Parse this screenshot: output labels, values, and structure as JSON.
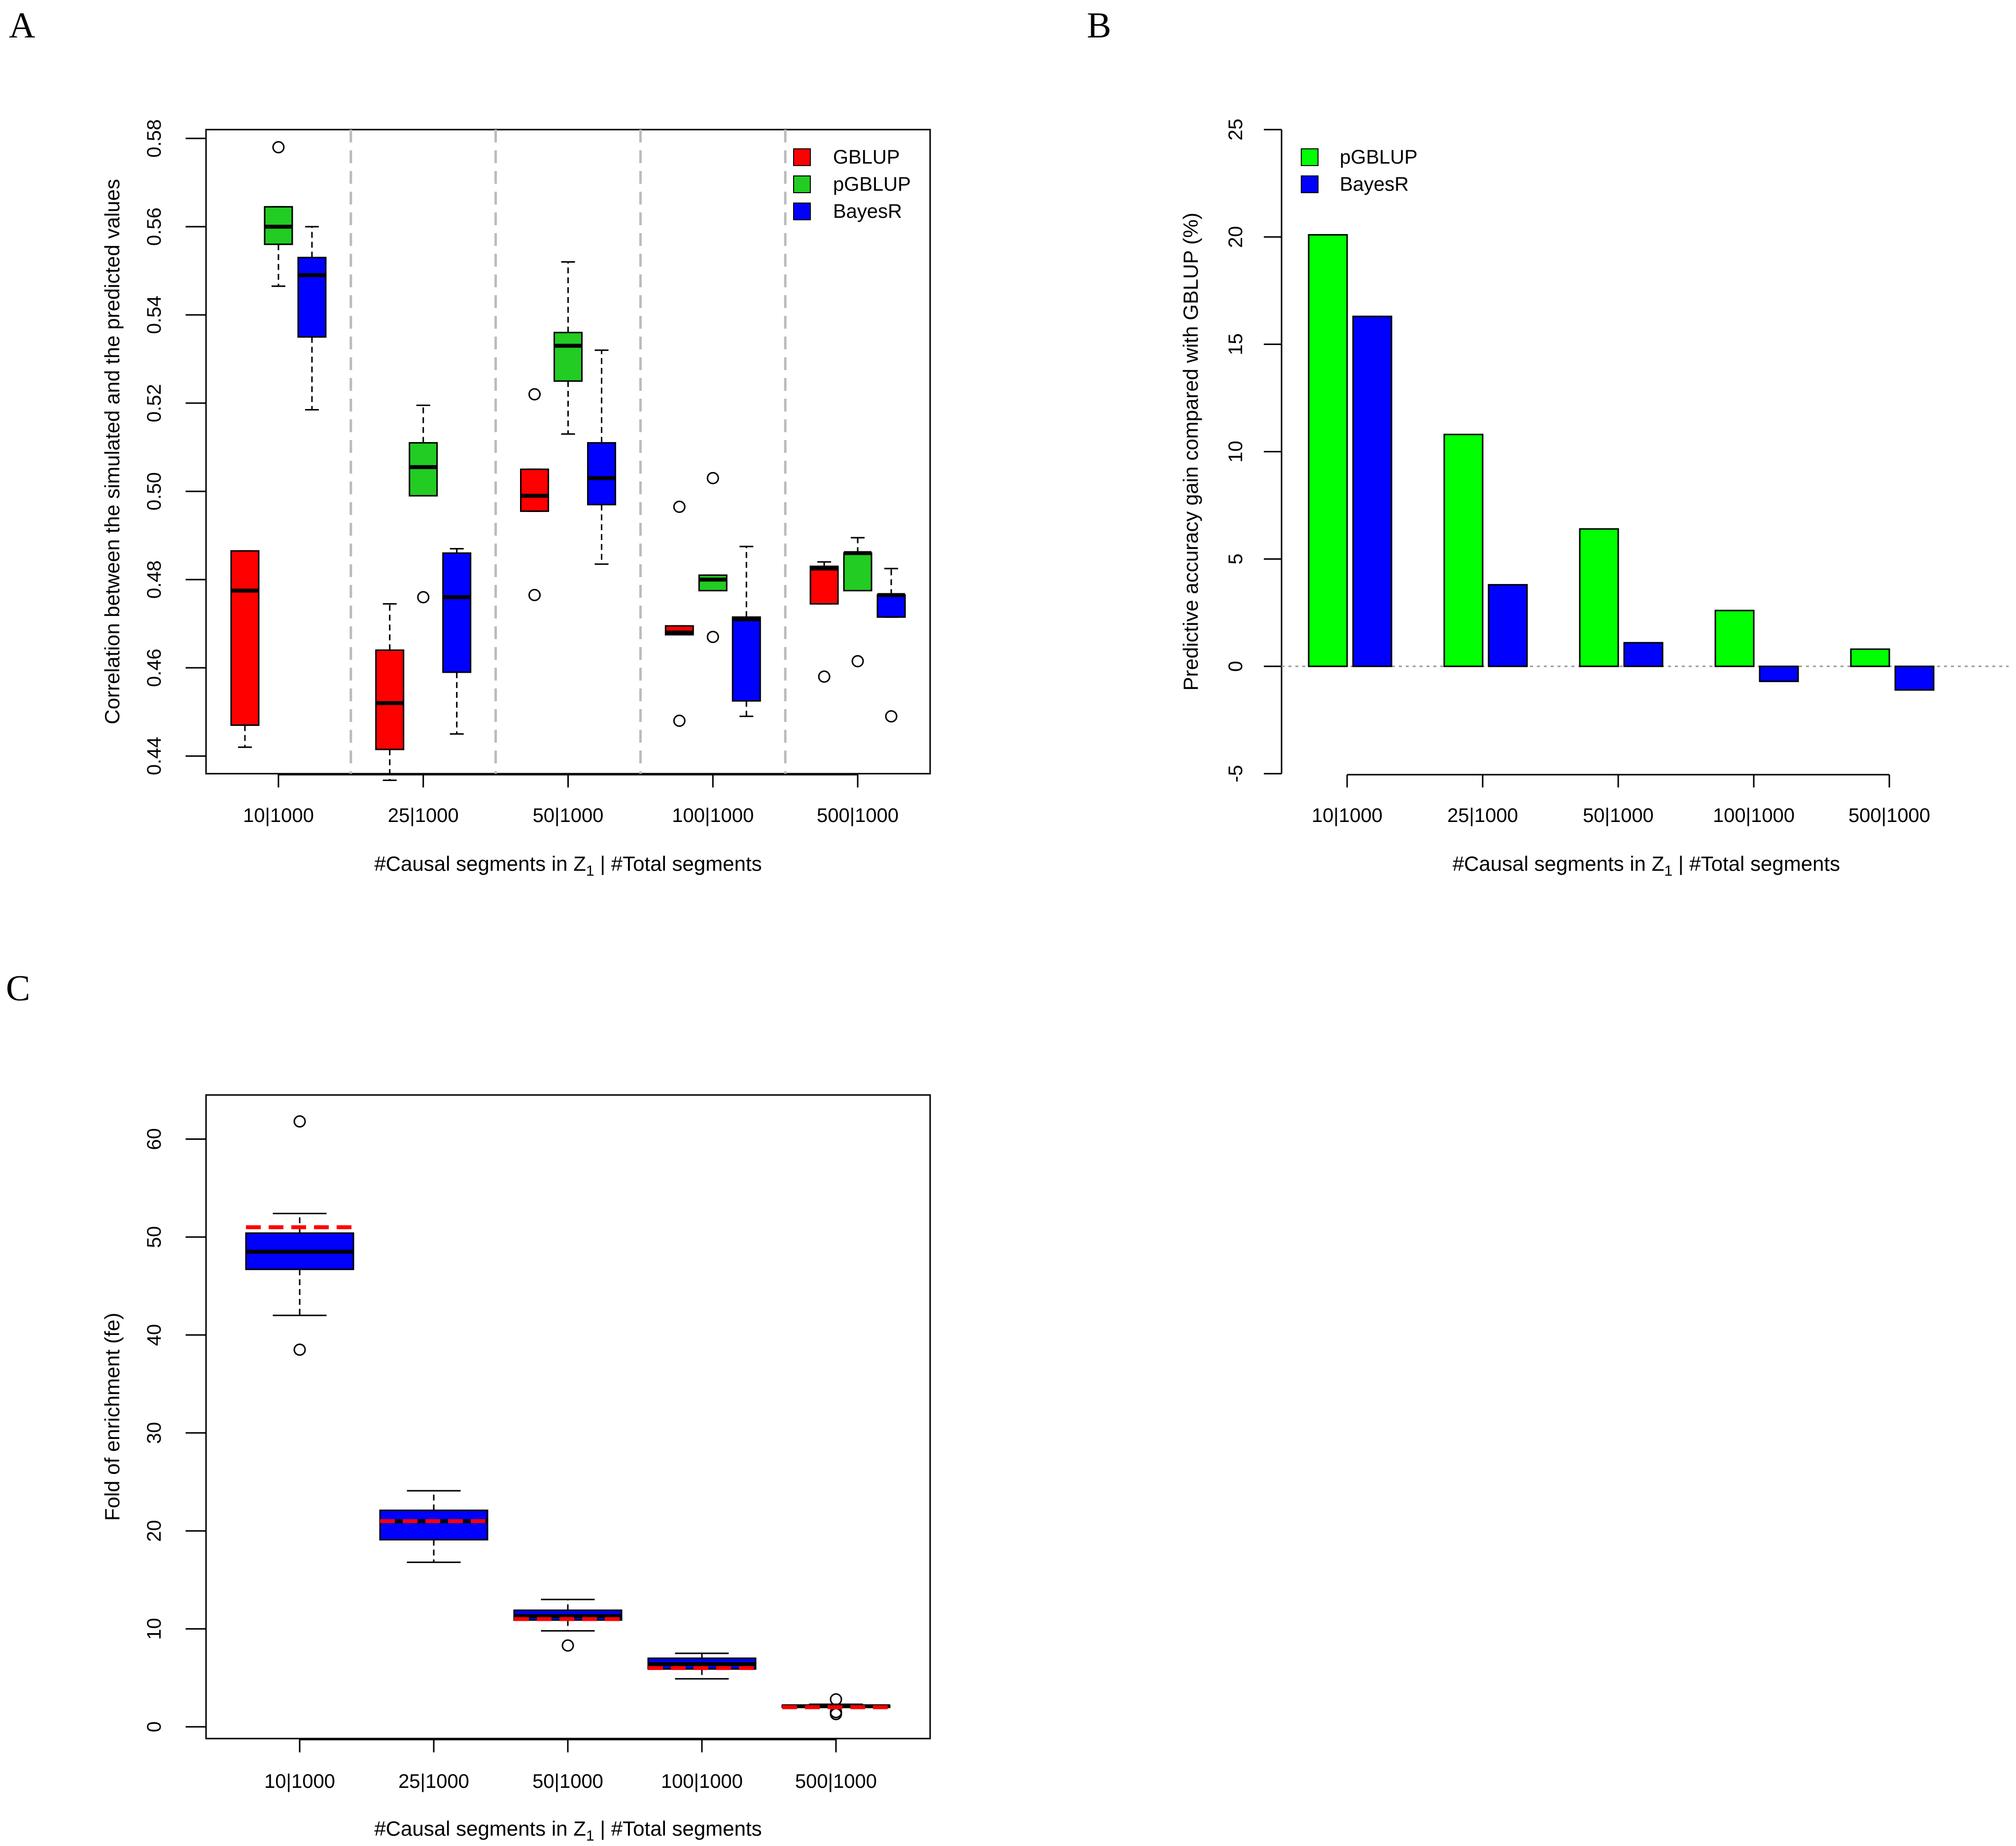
{
  "chart_data": [
    {
      "panel": "A",
      "type": "boxplot",
      "xlabel": "#Causal segments in Z1 | #Total segments",
      "xlabel_parts": {
        "pre": "#Causal segments in Z",
        "sub": "1",
        "post": " | #Total segments"
      },
      "ylabel": "Correlation between the simulated and the predicted values",
      "ylim": [
        0.436,
        0.582
      ],
      "yticks": [
        0.44,
        0.46,
        0.48,
        0.5,
        0.52,
        0.54,
        0.56,
        0.58
      ],
      "ytick_labels": [
        "0.44",
        "0.46",
        "0.48",
        "0.50",
        "0.52",
        "0.54",
        "0.56",
        "0.58"
      ],
      "categories": [
        "10|1000",
        "25|1000",
        "50|1000",
        "100|1000",
        "500|1000"
      ],
      "legend_position": "top-right",
      "series": [
        {
          "name": "GBLUP",
          "color": "#ff0000",
          "boxes": [
            {
              "min": 0.442,
              "q1": 0.447,
              "median": 0.4775,
              "q3": 0.4865,
              "max": 0.4865,
              "outliers": []
            },
            {
              "min": 0.4345,
              "q1": 0.4415,
              "median": 0.452,
              "q3": 0.464,
              "max": 0.4745,
              "outliers": []
            },
            {
              "min": 0.4955,
              "q1": 0.4955,
              "median": 0.499,
              "q3": 0.505,
              "max": 0.505,
              "outliers": [
                0.522,
                0.4765
              ]
            },
            {
              "min": 0.4675,
              "q1": 0.4675,
              "median": 0.468,
              "q3": 0.4695,
              "max": 0.4695,
              "outliers": [
                0.4965,
                0.448
              ]
            },
            {
              "min": 0.4745,
              "q1": 0.4745,
              "median": 0.4825,
              "q3": 0.483,
              "max": 0.484,
              "outliers": [
                0.458
              ]
            }
          ]
        },
        {
          "name": "pGBLUP",
          "color": "#22cc22",
          "boxes": [
            {
              "min": 0.5465,
              "q1": 0.556,
              "median": 0.56,
              "q3": 0.5645,
              "max": 0.5645,
              "outliers": [
                0.578
              ]
            },
            {
              "min": 0.499,
              "q1": 0.499,
              "median": 0.5055,
              "q3": 0.511,
              "max": 0.5195,
              "outliers": [
                0.476
              ]
            },
            {
              "min": 0.513,
              "q1": 0.525,
              "median": 0.533,
              "q3": 0.536,
              "max": 0.552,
              "outliers": []
            },
            {
              "min": 0.4775,
              "q1": 0.4775,
              "median": 0.48,
              "q3": 0.481,
              "max": 0.481,
              "outliers": [
                0.503,
                0.467
              ]
            },
            {
              "min": 0.4775,
              "q1": 0.4775,
              "median": 0.486,
              "q3": 0.486,
              "max": 0.4895,
              "outliers": [
                0.4615
              ]
            }
          ]
        },
        {
          "name": "BayesR",
          "color": "#0000ff",
          "boxes": [
            {
              "min": 0.5185,
              "q1": 0.535,
              "median": 0.549,
              "q3": 0.553,
              "max": 0.56,
              "outliers": []
            },
            {
              "min": 0.445,
              "q1": 0.459,
              "median": 0.476,
              "q3": 0.486,
              "max": 0.487,
              "outliers": []
            },
            {
              "min": 0.4835,
              "q1": 0.497,
              "median": 0.503,
              "q3": 0.511,
              "max": 0.532,
              "outliers": []
            },
            {
              "min": 0.449,
              "q1": 0.4525,
              "median": 0.471,
              "q3": 0.4715,
              "max": 0.4875,
              "outliers": []
            },
            {
              "min": 0.4715,
              "q1": 0.4715,
              "median": 0.4765,
              "q3": 0.4765,
              "max": 0.4825,
              "outliers": [
                0.449
              ]
            }
          ]
        }
      ]
    },
    {
      "panel": "B",
      "type": "bar",
      "xlabel": "#Causal segments in Z1 | #Total segments",
      "xlabel_parts": {
        "pre": "#Causal segments in Z",
        "sub": "1",
        "post": " | #Total segments"
      },
      "ylabel": "Predictive accuracy gain compared with GBLUP (%)",
      "ylim": [
        -5,
        25
      ],
      "yticks": [
        -5,
        0,
        5,
        10,
        15,
        20,
        25
      ],
      "ytick_labels": [
        "-5",
        "0",
        "5",
        "10",
        "15",
        "20",
        "25"
      ],
      "categories": [
        "10|1000",
        "25|1000",
        "50|1000",
        "100|1000",
        "500|1000"
      ],
      "legend_position": "top-left",
      "series": [
        {
          "name": "pGBLUP",
          "color": "#00ff00",
          "values": [
            20.1,
            10.8,
            6.4,
            2.6,
            0.8
          ]
        },
        {
          "name": "BayesR",
          "color": "#0000ff",
          "values": [
            16.3,
            3.8,
            1.1,
            -0.7,
            -1.1
          ]
        }
      ]
    },
    {
      "panel": "C",
      "type": "boxplot",
      "xlabel": "#Causal segments in Z1 | #Total segments",
      "xlabel_parts": {
        "pre": "#Causal segments in Z",
        "sub": "1",
        "post": " | #Total segments"
      },
      "ylabel": "Fold of enrichment (fe)",
      "ylim": [
        -1.2,
        64.5
      ],
      "yticks": [
        0,
        10,
        20,
        30,
        40,
        50,
        60
      ],
      "ytick_labels": [
        "0",
        "10",
        "20",
        "30",
        "40",
        "50",
        "60"
      ],
      "categories": [
        "10|1000",
        "25|1000",
        "50|1000",
        "100|1000",
        "500|1000"
      ],
      "box_color": "#0000ff",
      "expected_line_color": "#ff0000",
      "expected": [
        51,
        21,
        11,
        6,
        2
      ],
      "boxes": [
        {
          "min": 42.0,
          "q1": 46.7,
          "median": 48.5,
          "q3": 50.4,
          "max": 52.4,
          "outliers": [
            61.8,
            38.5
          ]
        },
        {
          "min": 16.8,
          "q1": 19.1,
          "median": 21.0,
          "q3": 22.1,
          "max": 24.1,
          "outliers": []
        },
        {
          "min": 9.8,
          "q1": 10.9,
          "median": 11.3,
          "q3": 11.9,
          "max": 13.0,
          "outliers": [
            8.3
          ]
        },
        {
          "min": 4.9,
          "q1": 5.9,
          "median": 6.4,
          "q3": 7.0,
          "max": 7.5,
          "outliers": []
        },
        {
          "min": 2.0,
          "q1": 2.0,
          "median": 2.1,
          "q3": 2.2,
          "max": 2.3,
          "outliers": [
            2.8,
            1.5,
            1.3
          ]
        }
      ]
    }
  ],
  "panel_labels": [
    "A",
    "B",
    "C"
  ]
}
